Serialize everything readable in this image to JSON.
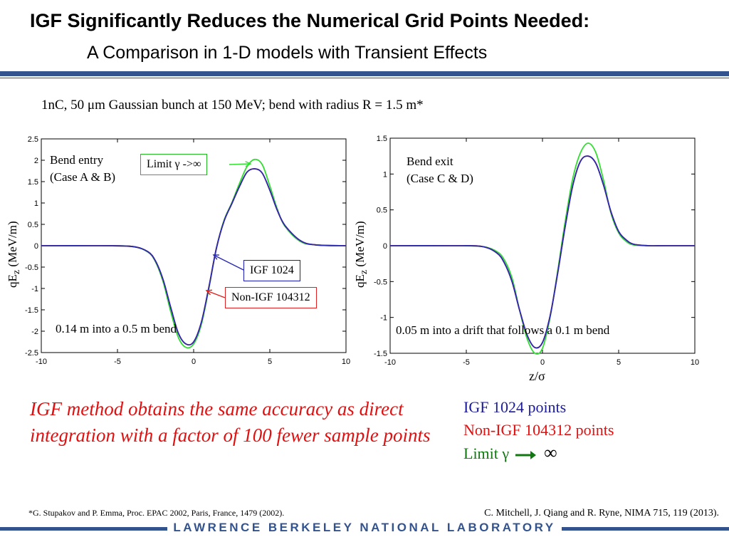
{
  "slide": {
    "title": "IGF Significantly Reduces the Numerical Grid Points Needed:",
    "subtitle": "A Comparison in 1-D models with Transient Effects",
    "setup": "1nC, 50 μm Gaussian bunch at 150 MeV; bend with radius R = 1.5 m*",
    "conclusion": "IGF method obtains the same accuracy as direct integration with a factor of 100 fewer sample points",
    "footnote": "*G. Stupakov and P. Emma, Proc. EPAC 2002, Paris, France, 1479 (2002).",
    "citation": "C. Mitchell, J. Qiang and R. Ryne,  NIMA  715, 119 (2013).",
    "lab_name": "LAWRENCE BERKELEY NATIONAL LABORATORY"
  },
  "legend": {
    "igf": "IGF 1024 points",
    "non_igf": "Non-IGF 104312 points",
    "limit_prefix": "Limit γ",
    "limit_symbol": "∞"
  },
  "colors": {
    "igf": "#2b2bb0",
    "non_igf": "#e02020",
    "limit": "#33dd33",
    "lab_blue": "#33538f",
    "conclusion_red": "#e01010"
  },
  "left_plot": {
    "label_line1": "Bend entry",
    "label_line2": "(Case A & B)",
    "note": "0.14 m into a 0.5 m bend",
    "callout_limit": "Limit γ ->∞",
    "callout_igf": "IGF 1024",
    "callout_non_igf": "Non-IGF 104312",
    "ylabel": "qEz (MeV/m)"
  },
  "right_plot": {
    "label_line1": "Bend exit",
    "label_line2": "(Case C & D)",
    "note": "0.05 m into a drift that follows a 0.1 m bend",
    "ylabel": "qEz (MeV/m)",
    "xlabel": "z/σ"
  },
  "chart_data": [
    {
      "type": "line",
      "title": "Bend entry (Case A & B)",
      "xlabel": "",
      "ylabel": "qEz (MeV/m)",
      "xlim": [
        -10,
        10
      ],
      "ylim": [
        -2.5,
        2.5
      ],
      "xticks": [
        -10,
        -5,
        0,
        5,
        10
      ],
      "yticks": [
        -2.5,
        -2,
        -1.5,
        -1,
        -0.5,
        0,
        0.5,
        1,
        1.5,
        2,
        2.5
      ],
      "ytick_labels": [
        "-2.5",
        "-2",
        "-1.5",
        "-1",
        "-0.5",
        "0",
        "0.5",
        "1",
        "1.5",
        "2",
        "2.5"
      ],
      "grid": false,
      "x": [
        -10,
        -6,
        -4,
        -3,
        -2.5,
        -2,
        -1.5,
        -1,
        -0.5,
        0,
        0.5,
        1,
        1.5,
        2,
        2.5,
        3,
        3.5,
        4,
        4.5,
        5,
        5.5,
        6,
        7,
        8,
        10
      ],
      "series": [
        {
          "name": "Limit γ ->∞",
          "color_key": "limit",
          "values": [
            0,
            0,
            -0.02,
            -0.15,
            -0.38,
            -0.85,
            -1.55,
            -2.15,
            -2.38,
            -2.3,
            -1.85,
            -1.0,
            -0.05,
            0.6,
            1.0,
            1.45,
            1.85,
            2.02,
            1.9,
            1.4,
            0.85,
            0.45,
            0.1,
            0.02,
            0
          ]
        },
        {
          "name": "Non-IGF 104312",
          "color_key": "non_igf",
          "values": [
            0,
            0,
            -0.02,
            -0.14,
            -0.36,
            -0.8,
            -1.45,
            -2.05,
            -2.3,
            -2.25,
            -1.8,
            -0.97,
            -0.05,
            0.58,
            0.98,
            1.38,
            1.72,
            1.8,
            1.7,
            1.3,
            0.82,
            0.47,
            0.12,
            0.02,
            0
          ]
        },
        {
          "name": "IGF 1024",
          "color_key": "igf",
          "values": [
            0,
            0,
            -0.02,
            -0.14,
            -0.36,
            -0.8,
            -1.45,
            -2.05,
            -2.3,
            -2.25,
            -1.8,
            -0.97,
            -0.05,
            0.58,
            0.98,
            1.38,
            1.72,
            1.8,
            1.7,
            1.3,
            0.82,
            0.47,
            0.12,
            0.02,
            0
          ]
        }
      ]
    },
    {
      "type": "line",
      "title": "Bend exit (Case C & D)",
      "xlabel": "z/σ",
      "ylabel": "qEz (MeV/m)",
      "xlim": [
        -10,
        10
      ],
      "ylim": [
        -1.5,
        1.5
      ],
      "xticks": [
        -10,
        -5,
        0,
        5,
        10
      ],
      "yticks": [
        -1.5,
        -1,
        -0.5,
        0,
        0.5,
        1,
        1.5
      ],
      "ytick_labels": [
        "-1.5",
        "-1",
        "-0.5",
        "0",
        "0.5",
        "1",
        "1.5"
      ],
      "grid": false,
      "x": [
        -10,
        -6,
        -4,
        -3,
        -2.5,
        -2,
        -1.5,
        -1,
        -0.5,
        0,
        0.5,
        1,
        1.5,
        2,
        2.5,
        3,
        3.5,
        4,
        4.5,
        5,
        5.5,
        6,
        7,
        8,
        10
      ],
      "series": [
        {
          "name": "Limit γ ->∞",
          "color_key": "limit",
          "values": [
            0,
            0,
            -0.01,
            -0.08,
            -0.2,
            -0.45,
            -0.9,
            -1.3,
            -1.5,
            -1.43,
            -1.0,
            -0.35,
            0.35,
            0.95,
            1.3,
            1.43,
            1.3,
            0.92,
            0.45,
            0.18,
            0.06,
            0.01,
            0,
            0,
            0
          ]
        },
        {
          "name": "Non-IGF 104312",
          "color_key": "non_igf",
          "values": [
            0,
            0,
            -0.01,
            -0.1,
            -0.24,
            -0.5,
            -0.9,
            -1.25,
            -1.42,
            -1.35,
            -0.98,
            -0.38,
            0.28,
            0.85,
            1.18,
            1.25,
            1.15,
            0.85,
            0.47,
            0.2,
            0.08,
            0.02,
            0,
            0,
            0
          ]
        },
        {
          "name": "IGF 1024",
          "color_key": "igf",
          "values": [
            0,
            0,
            -0.01,
            -0.1,
            -0.24,
            -0.5,
            -0.9,
            -1.25,
            -1.42,
            -1.35,
            -0.98,
            -0.38,
            0.28,
            0.85,
            1.18,
            1.25,
            1.15,
            0.85,
            0.47,
            0.2,
            0.08,
            0.02,
            0,
            0,
            0
          ]
        }
      ]
    }
  ]
}
